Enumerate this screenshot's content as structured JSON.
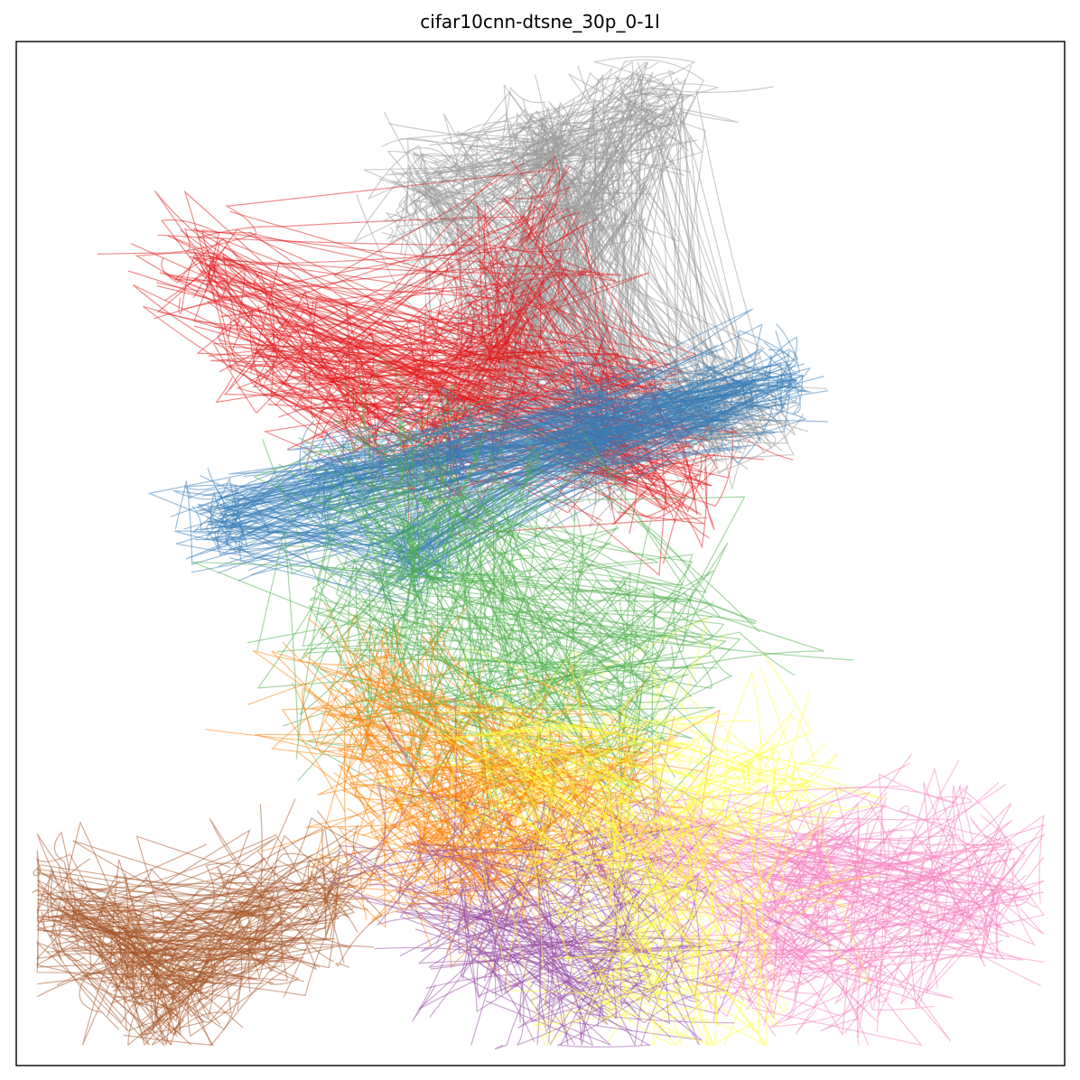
{
  "chart_data": {
    "type": "line",
    "title": "cifar10cnn-dtsne_30p_0-1l",
    "xlabel": "",
    "ylabel": "",
    "xticks": [],
    "yticks": [],
    "grid": false,
    "legend": "none",
    "xlim": [
      0,
      100
    ],
    "ylim": [
      0,
      100
    ],
    "series": [
      {
        "color": "#999999",
        "centers": [
          [
            40,
            85
          ],
          [
            50,
            90
          ],
          [
            60,
            93
          ],
          [
            54,
            84
          ],
          [
            48,
            75
          ],
          [
            45,
            65
          ],
          [
            56,
            60
          ],
          [
            68,
            63
          ]
        ],
        "spread": 3.2,
        "count": 220
      },
      {
        "color": "#e41a1c",
        "centers": [
          [
            18,
            78
          ],
          [
            24,
            70
          ],
          [
            33,
            66
          ],
          [
            45,
            72
          ],
          [
            50,
            82
          ],
          [
            40,
            60
          ],
          [
            58,
            65
          ],
          [
            62,
            58
          ]
        ],
        "spread": 3.4,
        "count": 160
      },
      {
        "color": "#377eb8",
        "centers": [
          [
            20,
            53
          ],
          [
            30,
            57
          ],
          [
            42,
            60
          ],
          [
            55,
            63
          ],
          [
            65,
            64
          ],
          [
            72,
            67
          ],
          [
            38,
            50
          ]
        ],
        "spread": 2.4,
        "count": 150
      },
      {
        "color": "#4daf4a",
        "centers": [
          [
            35,
            42
          ],
          [
            48,
            45
          ],
          [
            60,
            43
          ],
          [
            42,
            30
          ],
          [
            55,
            35
          ],
          [
            38,
            55
          ]
        ],
        "spread": 6.0,
        "count": 110
      },
      {
        "color": "#ff7f00",
        "centers": [
          [
            33,
            34
          ],
          [
            42,
            29
          ],
          [
            48,
            22
          ],
          [
            38,
            20
          ],
          [
            55,
            28
          ]
        ],
        "spread": 5.0,
        "count": 100
      },
      {
        "color": "#a65628",
        "centers": [
          [
            5,
            15
          ],
          [
            12,
            10
          ],
          [
            22,
            13
          ],
          [
            28,
            17
          ],
          [
            15,
            7
          ]
        ],
        "spread": 3.5,
        "count": 110
      },
      {
        "color": "#f781bf",
        "centers": [
          [
            75,
            18
          ],
          [
            85,
            22
          ],
          [
            92,
            17
          ],
          [
            80,
            8
          ],
          [
            70,
            10
          ],
          [
            62,
            22
          ]
        ],
        "spread": 4.0,
        "count": 110
      },
      {
        "color": "#984ea3",
        "centers": [
          [
            45,
            12
          ],
          [
            52,
            7
          ],
          [
            40,
            18
          ],
          [
            55,
            18
          ],
          [
            60,
            10
          ]
        ],
        "spread": 5.0,
        "count": 70
      },
      {
        "color": "#ffff33",
        "centers": [
          [
            58,
            12
          ],
          [
            66,
            10
          ],
          [
            62,
            25
          ],
          [
            70,
            28
          ],
          [
            50,
            30
          ]
        ],
        "spread": 5.5,
        "count": 70
      }
    ]
  }
}
